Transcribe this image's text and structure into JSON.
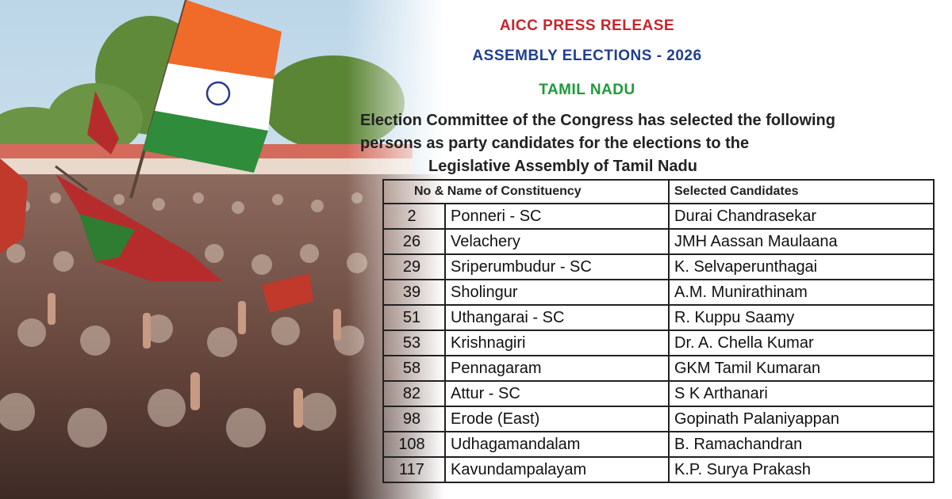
{
  "photo": {
    "alt": "rally crowd with flags"
  },
  "colors": {
    "press": "#c8232c",
    "elections": "#1f3f8f",
    "state": "#1f9a3a"
  },
  "document": {
    "press_release": "AICC PRESS RELEASE",
    "elections_title": "ASSEMBLY ELECTIONS - 2026",
    "state": "TAMIL NADU",
    "intro_line1": "Election Committee of the Congress has selected the following",
    "intro_line2": "persons as party candidates for the elections to the",
    "intro_line3": "Legislative Assembly of Tamil Nadu",
    "table": {
      "col_constituency": "No & Name of Constituency",
      "col_candidates": "Selected Candidates",
      "rows": [
        {
          "no": "2",
          "constituency": "Ponneri - SC",
          "candidate": "Durai Chandrasekar"
        },
        {
          "no": "26",
          "constituency": "Velachery",
          "candidate": "JMH Aassan Maulaana"
        },
        {
          "no": "29",
          "constituency": "Sriperumbudur - SC",
          "candidate": "K. Selvaperunthagai"
        },
        {
          "no": "39",
          "constituency": "Sholingur",
          "candidate": "A.M. Munirathinam"
        },
        {
          "no": "51",
          "constituency": "Uthangarai - SC",
          "candidate": "R. Kuppu Saamy"
        },
        {
          "no": "53",
          "constituency": "Krishnagiri",
          "candidate": "Dr. A. Chella Kumar"
        },
        {
          "no": "58",
          "constituency": "Pennagaram",
          "candidate": "GKM Tamil Kumaran"
        },
        {
          "no": "82",
          "constituency": "Attur - SC",
          "candidate": "S K Arthanari"
        },
        {
          "no": "98",
          "constituency": "Erode (East)",
          "candidate": "Gopinath Palaniyappan"
        },
        {
          "no": "108",
          "constituency": "Udhagamandalam",
          "candidate": "B. Ramachandran"
        },
        {
          "no": "117",
          "constituency": "Kavundampalayam",
          "candidate": "K.P. Surya Prakash"
        }
      ]
    }
  }
}
